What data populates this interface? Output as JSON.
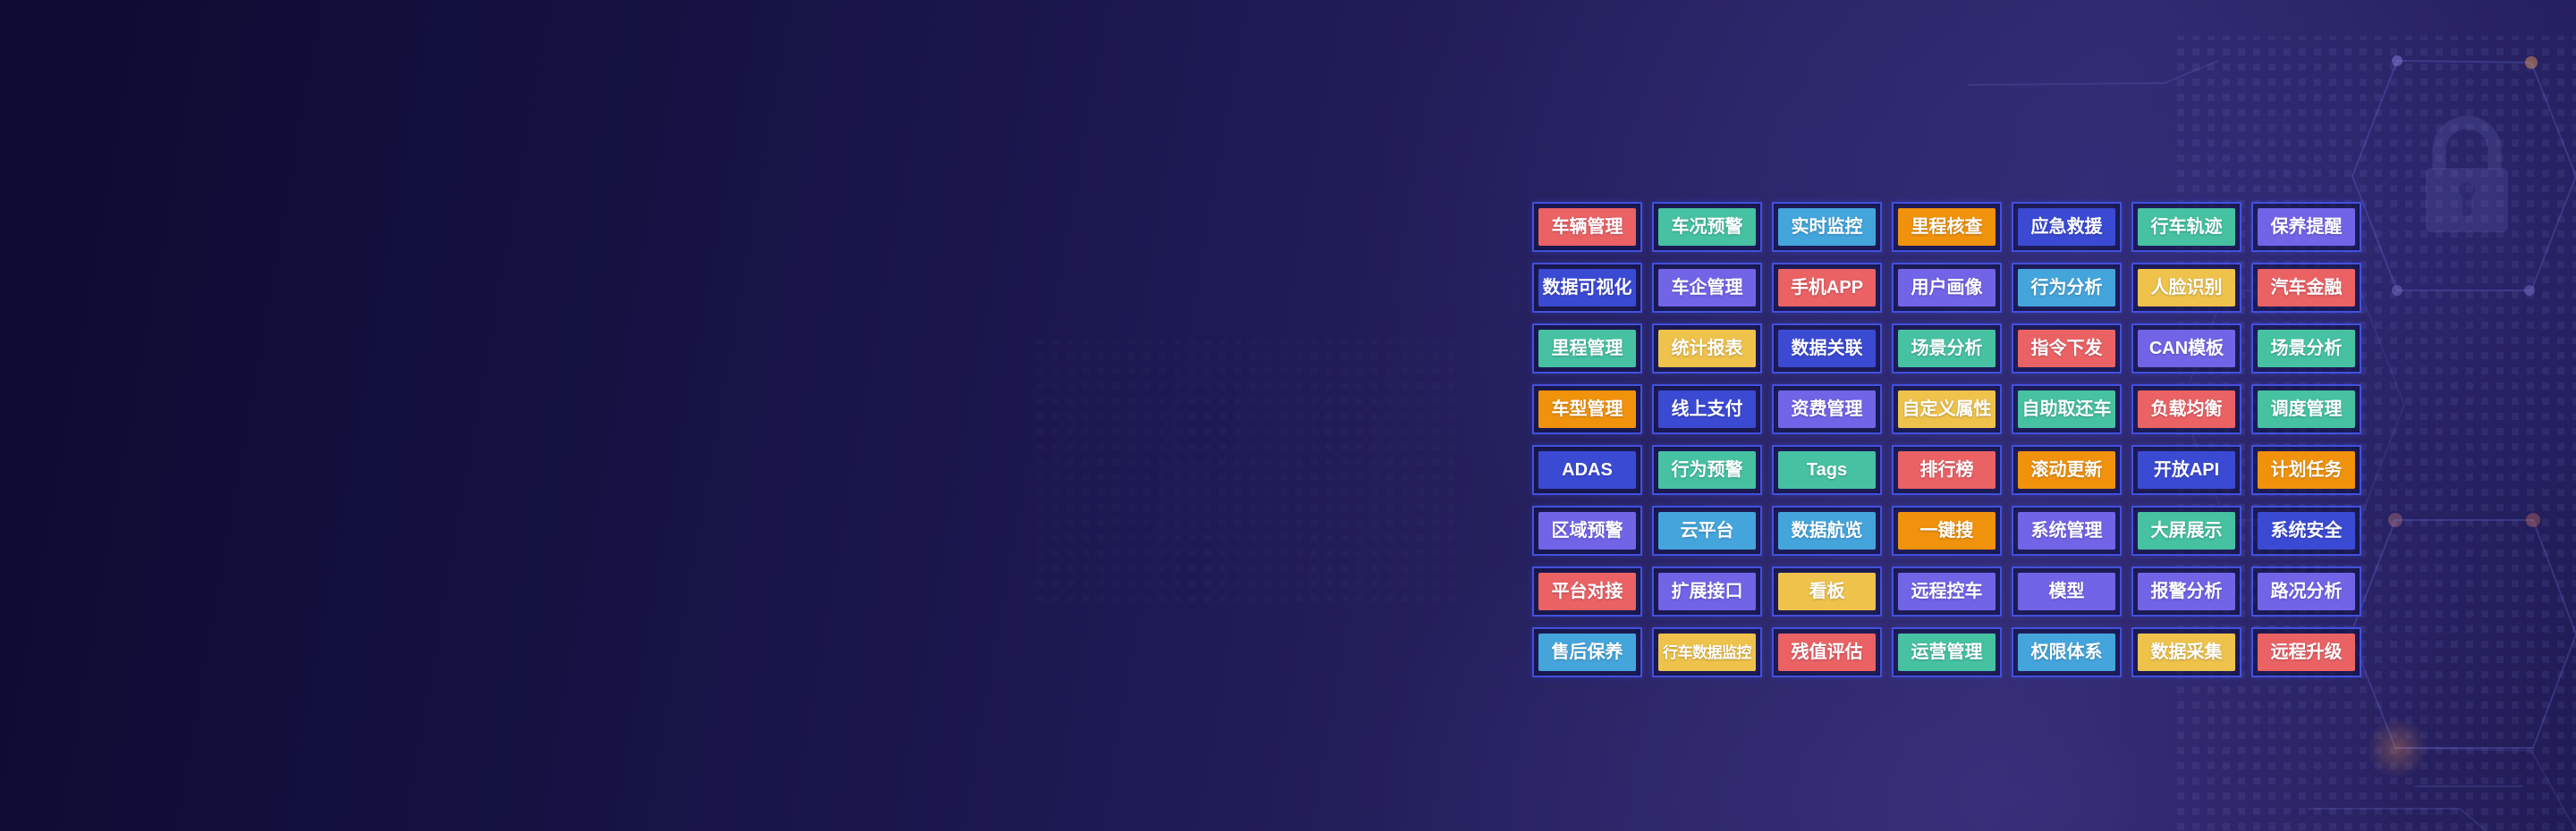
{
  "palette": {
    "coral": "#ea6264",
    "teal": "#46c1a2",
    "lightblue": "#44a5dc",
    "orange": "#f0920c",
    "blue": "#3b4ad3",
    "purple": "#7164e7",
    "yellow": "#eec24b",
    "cell_border": "#4450dd",
    "cell_bg": "#14164c",
    "button_text": "#ffffff",
    "background_dark": "#0d0b31",
    "background_light": "#2c2766"
  },
  "decorations": {
    "lock_icon": "padlock",
    "hexagon_pattern": "hexagon-outline-grid",
    "dot_grid": "dotted-square-grid"
  },
  "grid": {
    "rows": [
      [
        {
          "label": "车辆管理",
          "color": "coral"
        },
        {
          "label": "车况预警",
          "color": "teal"
        },
        {
          "label": "实时监控",
          "color": "lightblue"
        },
        {
          "label": "里程核查",
          "color": "orange"
        },
        {
          "label": "应急救援",
          "color": "blue"
        },
        {
          "label": "行车轨迹",
          "color": "teal"
        },
        {
          "label": "保养提醒",
          "color": "purple"
        }
      ],
      [
        {
          "label": "数据可视化",
          "color": "blue"
        },
        {
          "label": "车企管理",
          "color": "purple"
        },
        {
          "label": "手机APP",
          "color": "coral"
        },
        {
          "label": "用户画像",
          "color": "purple"
        },
        {
          "label": "行为分析",
          "color": "lightblue"
        },
        {
          "label": "人脸识别",
          "color": "yellow"
        },
        {
          "label": "汽车金融",
          "color": "coral"
        }
      ],
      [
        {
          "label": "里程管理",
          "color": "teal"
        },
        {
          "label": "统计报表",
          "color": "yellow"
        },
        {
          "label": "数据关联",
          "color": "blue"
        },
        {
          "label": "场景分析",
          "color": "teal"
        },
        {
          "label": "指令下发",
          "color": "coral"
        },
        {
          "label": "CAN模板",
          "color": "purple"
        },
        {
          "label": "场景分析",
          "color": "teal"
        }
      ],
      [
        {
          "label": "车型管理",
          "color": "orange"
        },
        {
          "label": "线上支付",
          "color": "blue"
        },
        {
          "label": "资费管理",
          "color": "purple"
        },
        {
          "label": "自定义属性",
          "color": "yellow"
        },
        {
          "label": "自助取还车",
          "color": "teal"
        },
        {
          "label": "负载均衡",
          "color": "coral"
        },
        {
          "label": "调度管理",
          "color": "teal"
        }
      ],
      [
        {
          "label": "ADAS",
          "color": "blue"
        },
        {
          "label": "行为预警",
          "color": "teal"
        },
        {
          "label": "Tags",
          "color": "teal"
        },
        {
          "label": "排行榜",
          "color": "coral"
        },
        {
          "label": "滚动更新",
          "color": "orange"
        },
        {
          "label": "开放API",
          "color": "blue"
        },
        {
          "label": "计划任务",
          "color": "orange"
        }
      ],
      [
        {
          "label": "区域预警",
          "color": "purple"
        },
        {
          "label": "云平台",
          "color": "lightblue"
        },
        {
          "label": "数据航览",
          "color": "lightblue"
        },
        {
          "label": "一键搜",
          "color": "orange"
        },
        {
          "label": "系统管理",
          "color": "purple"
        },
        {
          "label": "大屏展示",
          "color": "teal"
        },
        {
          "label": "系统安全",
          "color": "blue"
        }
      ],
      [
        {
          "label": "平台对接",
          "color": "coral"
        },
        {
          "label": "扩展接口",
          "color": "purple"
        },
        {
          "label": "看板",
          "color": "yellow"
        },
        {
          "label": "远程控车",
          "color": "purple"
        },
        {
          "label": "模型",
          "color": "purple"
        },
        {
          "label": "报警分析",
          "color": "purple"
        },
        {
          "label": "路况分析",
          "color": "purple"
        }
      ],
      [
        {
          "label": "售后保养",
          "color": "lightblue"
        },
        {
          "label": "行车数据监控",
          "color": "yellow"
        },
        {
          "label": "残值评估",
          "color": "coral"
        },
        {
          "label": "运营管理",
          "color": "teal"
        },
        {
          "label": "权限体系",
          "color": "lightblue"
        },
        {
          "label": "数据采集",
          "color": "yellow"
        },
        {
          "label": "远程升级",
          "color": "coral"
        }
      ]
    ]
  }
}
